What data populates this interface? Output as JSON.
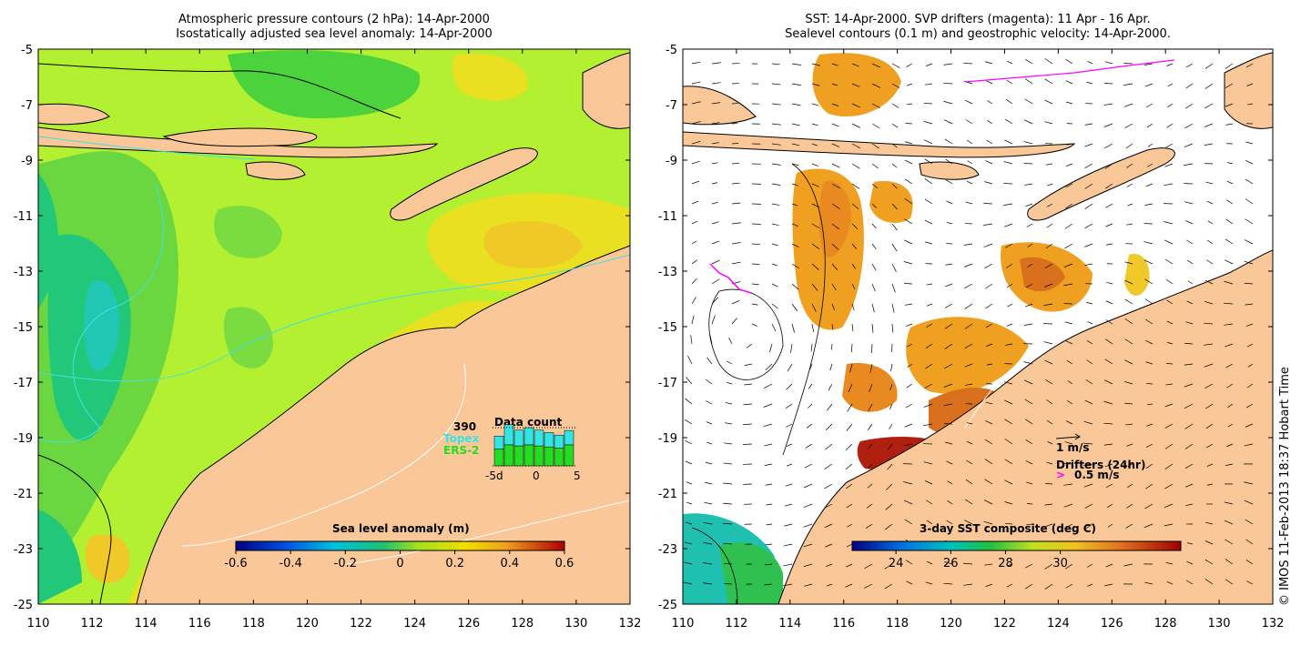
{
  "left_panel": {
    "title_line1": "Atmospheric pressure contours (2 hPa): 14-Apr-2000",
    "title_line2": "Isostatically adjusted sea level anomaly: 14-Apr-2000",
    "colorbar_label": "Sea level anomaly (m)",
    "colorbar_ticks": [
      "-0.6",
      "-0.4",
      "-0.2",
      "0",
      "0.2",
      "0.4",
      "0.6"
    ],
    "inset": {
      "total_count": "390",
      "topex_label": "Topex",
      "ers2_label": "ERS-2",
      "title": "Data count",
      "x_ticks": [
        "-5d",
        "0",
        "5"
      ],
      "topex_color": "#33e6e6",
      "ers2_color": "#22dd22",
      "bars": [
        {
          "topex": 0.45,
          "ers2": 0.8
        },
        {
          "topex": 0.7,
          "ers2": 1.0
        },
        {
          "topex": 0.55,
          "ers2": 0.95
        },
        {
          "topex": 0.6,
          "ers2": 1.0
        },
        {
          "topex": 0.55,
          "ers2": 0.95
        },
        {
          "topex": 0.5,
          "ers2": 0.9
        },
        {
          "topex": 0.45,
          "ers2": 0.85
        },
        {
          "topex": 0.5,
          "ers2": 1.0
        }
      ]
    }
  },
  "right_panel": {
    "title_line1": "SST: 14-Apr-2000. SVP drifters (magenta): 11 Apr - 16 Apr.",
    "title_line2": "Sealevel contours (0.1 m) and geostrophic velocity: 14-Apr-2000.",
    "colorbar_label": "3-day SST composite (deg C)",
    "colorbar_ticks": [
      "24",
      "26",
      "28",
      "30"
    ],
    "velocity_scale_label": "1 m/s",
    "drifter_label": "Drifters (24hr)",
    "drifter_scale_label": "0.5 m/s",
    "drifter_color": "#ff00ff"
  },
  "axes": {
    "x_ticks": [
      "110",
      "112",
      "114",
      "116",
      "118",
      "120",
      "122",
      "124",
      "126",
      "128",
      "130",
      "132"
    ],
    "y_ticks": [
      "-5",
      "-7",
      "-9",
      "-11",
      "-13",
      "-15",
      "-17",
      "-19",
      "-21",
      "-23",
      "-25"
    ]
  },
  "credit": "© IMOS 11-Feb-2013 18:37 Hobart Time",
  "colors": {
    "land": "#fac898",
    "sea_base": "#b4f032",
    "sst_no_data": "#ffffff"
  }
}
